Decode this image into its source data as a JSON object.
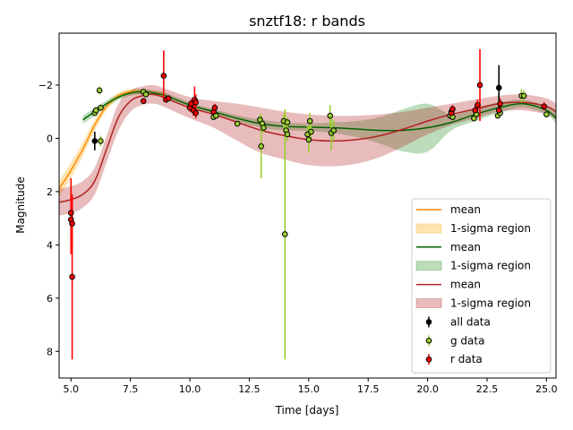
{
  "chart_data": {
    "type": "line",
    "title": "snztf18: r bands",
    "xlabel": "Time [days]",
    "ylabel": "Magnitude",
    "xlim": [
      4.5,
      25.4
    ],
    "ylim": [
      9.0,
      -3.95
    ],
    "y_inverted": true,
    "xticks": [
      5.0,
      7.5,
      10.0,
      12.5,
      15.0,
      17.5,
      20.0,
      22.5,
      25.0
    ],
    "xtick_labels": [
      "5.0",
      "7.5",
      "10.0",
      "12.5",
      "15.0",
      "17.5",
      "20.0",
      "22.5",
      "25.0"
    ],
    "yticks": [
      -2,
      0,
      2,
      4,
      6,
      8
    ],
    "ytick_labels": [
      "−2",
      "0",
      "2",
      "4",
      "6",
      "8"
    ],
    "grid": false,
    "legend_position": "lower-right",
    "legend": [
      {
        "label": "mean",
        "kind": "line",
        "color": "#ff8c00"
      },
      {
        "label": "1-sigma region",
        "kind": "patch",
        "color": "#ffa500"
      },
      {
        "label": "mean",
        "kind": "line",
        "color": "#006400"
      },
      {
        "label": "1-sigma region",
        "kind": "patch",
        "color": "#228b22"
      },
      {
        "label": "mean",
        "kind": "line",
        "color": "#b22222"
      },
      {
        "label": "1-sigma region",
        "kind": "patch",
        "color": "#b22222"
      },
      {
        "label": "all data",
        "kind": "errorbar",
        "color": "#000000"
      },
      {
        "label": "g data",
        "kind": "errorbar",
        "color": "#9acd32"
      },
      {
        "label": "r data",
        "kind": "errorbar",
        "color": "#ff0000"
      }
    ],
    "fits": [
      {
        "color": "#ff8c00",
        "fill": "#ffa500",
        "x": [
          4.5,
          5.0,
          5.5,
          6.0,
          6.5,
          7.0,
          7.5,
          8.0,
          8.5,
          9.0
        ],
        "mean": [
          1.9,
          1.2,
          0.4,
          -0.5,
          -1.2,
          -1.6,
          -1.75,
          -1.75,
          -1.7,
          -1.6
        ],
        "sigma": [
          0.3,
          0.3,
          0.25,
          0.2,
          0.15,
          0.12,
          0.1,
          0.1,
          0.1,
          0.1
        ]
      },
      {
        "color": "#006400",
        "fill": "#228b22",
        "x": [
          5.5,
          6.0,
          6.5,
          7.0,
          7.5,
          8.0,
          8.5,
          9.0,
          10.0,
          11.0,
          12.0,
          13.0,
          14.0,
          15.0,
          16.0,
          17.0,
          18.0,
          19.0,
          20.0,
          21.0,
          22.0,
          23.0,
          24.0,
          25.0,
          25.4
        ],
        "mean": [
          -0.7,
          -1.0,
          -1.3,
          -1.55,
          -1.7,
          -1.75,
          -1.7,
          -1.6,
          -1.25,
          -1.0,
          -0.75,
          -0.55,
          -0.45,
          -0.42,
          -0.4,
          -0.35,
          -0.3,
          -0.3,
          -0.4,
          -0.6,
          -0.9,
          -1.15,
          -1.3,
          -1.05,
          -0.75
        ],
        "sigma": [
          0.15,
          0.15,
          0.12,
          0.1,
          0.1,
          0.1,
          0.1,
          0.1,
          0.1,
          0.1,
          0.12,
          0.15,
          0.15,
          0.15,
          0.2,
          0.3,
          0.5,
          0.8,
          0.9,
          0.3,
          0.25,
          0.2,
          0.15,
          0.15,
          0.2
        ]
      },
      {
        "color": "#b22222",
        "fill": "#b22222",
        "x": [
          4.5,
          5.0,
          5.5,
          6.0,
          6.5,
          7.0,
          7.5,
          8.0,
          8.5,
          9.0,
          10.0,
          11.0,
          12.0,
          13.0,
          14.0,
          15.0,
          16.0,
          17.0,
          18.0,
          19.0,
          20.0,
          21.0,
          22.0,
          23.0,
          24.0,
          25.0,
          25.4
        ],
        "mean": [
          2.4,
          2.3,
          2.1,
          1.6,
          0.4,
          -0.8,
          -1.4,
          -1.6,
          -1.65,
          -1.5,
          -1.15,
          -0.9,
          -0.6,
          -0.3,
          -0.1,
          0.05,
          0.1,
          0.05,
          -0.1,
          -0.35,
          -0.65,
          -0.9,
          -1.1,
          -1.3,
          -1.35,
          -1.2,
          -1.0
        ],
        "sigma": [
          0.5,
          0.5,
          0.5,
          0.5,
          0.5,
          0.5,
          0.4,
          0.35,
          0.35,
          0.35,
          0.4,
          0.5,
          0.7,
          0.85,
          0.9,
          0.95,
          0.95,
          0.9,
          0.8,
          0.65,
          0.5,
          0.4,
          0.35,
          0.3,
          0.3,
          0.3,
          0.3
        ]
      }
    ],
    "series": [
      {
        "name": "all data",
        "color": "#000000",
        "points": [
          {
            "x": 6.0,
            "y": 0.1,
            "err": 0.35
          },
          {
            "x": 23.0,
            "y": -1.9,
            "err": 0.85
          }
        ]
      },
      {
        "name": "g data",
        "color": "#9acd32",
        "points": [
          {
            "x": 6.0,
            "y": -0.95,
            "err": 0.1
          },
          {
            "x": 6.05,
            "y": -1.05,
            "err": 0.1
          },
          {
            "x": 6.2,
            "y": -1.8,
            "err": 0.15
          },
          {
            "x": 6.25,
            "y": 0.1,
            "err": 0.2
          },
          {
            "x": 6.25,
            "y": -1.15,
            "err": 0.1
          },
          {
            "x": 8.05,
            "y": -1.75,
            "err": 0.1
          },
          {
            "x": 8.15,
            "y": -1.65,
            "err": 0.1
          },
          {
            "x": 11.0,
            "y": -0.8,
            "err": 0.1
          },
          {
            "x": 11.1,
            "y": -0.85,
            "err": 0.1
          },
          {
            "x": 12.0,
            "y": -0.55,
            "err": 0.1
          },
          {
            "x": 12.95,
            "y": -0.7,
            "err": 0.2
          },
          {
            "x": 13.0,
            "y": 0.3,
            "err": 1.2
          },
          {
            "x": 13.05,
            "y": -0.55,
            "err": 0.2
          },
          {
            "x": 13.1,
            "y": -0.4,
            "err": 0.2
          },
          {
            "x": 13.95,
            "y": -0.65,
            "err": 0.25
          },
          {
            "x": 14.0,
            "y": 3.6,
            "err": 4.7
          },
          {
            "x": 14.05,
            "y": -0.3,
            "err": 0.25
          },
          {
            "x": 14.1,
            "y": -0.15,
            "err": 0.25
          },
          {
            "x": 14.1,
            "y": -0.6,
            "err": 0.2
          },
          {
            "x": 14.95,
            "y": -0.15,
            "err": 0.3
          },
          {
            "x": 15.0,
            "y": 0.05,
            "err": 0.5
          },
          {
            "x": 15.05,
            "y": -0.65,
            "err": 0.3
          },
          {
            "x": 15.1,
            "y": -0.25,
            "err": 0.3
          },
          {
            "x": 15.9,
            "y": -0.85,
            "err": 0.4
          },
          {
            "x": 15.95,
            "y": -0.2,
            "err": 0.65
          },
          {
            "x": 16.05,
            "y": -0.3,
            "err": 0.4
          },
          {
            "x": 20.95,
            "y": -0.85,
            "err": 0.1
          },
          {
            "x": 21.0,
            "y": -1.0,
            "err": 0.1
          },
          {
            "x": 21.05,
            "y": -0.8,
            "err": 0.1
          },
          {
            "x": 21.95,
            "y": -0.75,
            "err": 0.1
          },
          {
            "x": 22.05,
            "y": -0.9,
            "err": 0.1
          },
          {
            "x": 22.95,
            "y": -0.85,
            "err": 0.1
          },
          {
            "x": 23.05,
            "y": -0.95,
            "err": 0.1
          },
          {
            "x": 23.95,
            "y": -1.6,
            "err": 0.25
          },
          {
            "x": 24.05,
            "y": -1.6,
            "err": 0.2
          },
          {
            "x": 25.0,
            "y": -0.9,
            "err": 0.1
          }
        ]
      },
      {
        "name": "r data",
        "color": "#ff0000",
        "points": [
          {
            "x": 5.0,
            "y": 2.8,
            "err": 1.3
          },
          {
            "x": 5.0,
            "y": 3.05,
            "err": 1.3
          },
          {
            "x": 5.05,
            "y": 3.2,
            "err": 1.0
          },
          {
            "x": 5.05,
            "y": 5.2,
            "err": 3.1
          },
          {
            "x": 8.05,
            "y": -1.4,
            "err": 0.1
          },
          {
            "x": 8.9,
            "y": -2.35,
            "err": 0.95
          },
          {
            "x": 9.0,
            "y": -1.45,
            "err": 0.1
          },
          {
            "x": 9.1,
            "y": -1.5,
            "err": 0.1
          },
          {
            "x": 10.0,
            "y": -1.15,
            "err": 0.15
          },
          {
            "x": 10.05,
            "y": -1.3,
            "err": 0.15
          },
          {
            "x": 10.15,
            "y": -1.05,
            "err": 0.2
          },
          {
            "x": 10.2,
            "y": -1.45,
            "err": 0.5
          },
          {
            "x": 10.25,
            "y": -1.35,
            "err": 0.3
          },
          {
            "x": 10.25,
            "y": -0.95,
            "err": 0.2
          },
          {
            "x": 11.0,
            "y": -1.0,
            "err": 0.15
          },
          {
            "x": 11.05,
            "y": -1.15,
            "err": 0.15
          },
          {
            "x": 21.0,
            "y": -0.95,
            "err": 0.15
          },
          {
            "x": 21.05,
            "y": -1.1,
            "err": 0.15
          },
          {
            "x": 22.0,
            "y": -1.05,
            "err": 0.15
          },
          {
            "x": 22.1,
            "y": -1.25,
            "err": 0.2
          },
          {
            "x": 22.2,
            "y": -2.0,
            "err": 1.35
          },
          {
            "x": 23.0,
            "y": -1.05,
            "err": 0.15
          },
          {
            "x": 23.05,
            "y": -1.3,
            "err": 0.2
          },
          {
            "x": 24.9,
            "y": -1.2,
            "err": 0.15
          }
        ]
      }
    ]
  }
}
